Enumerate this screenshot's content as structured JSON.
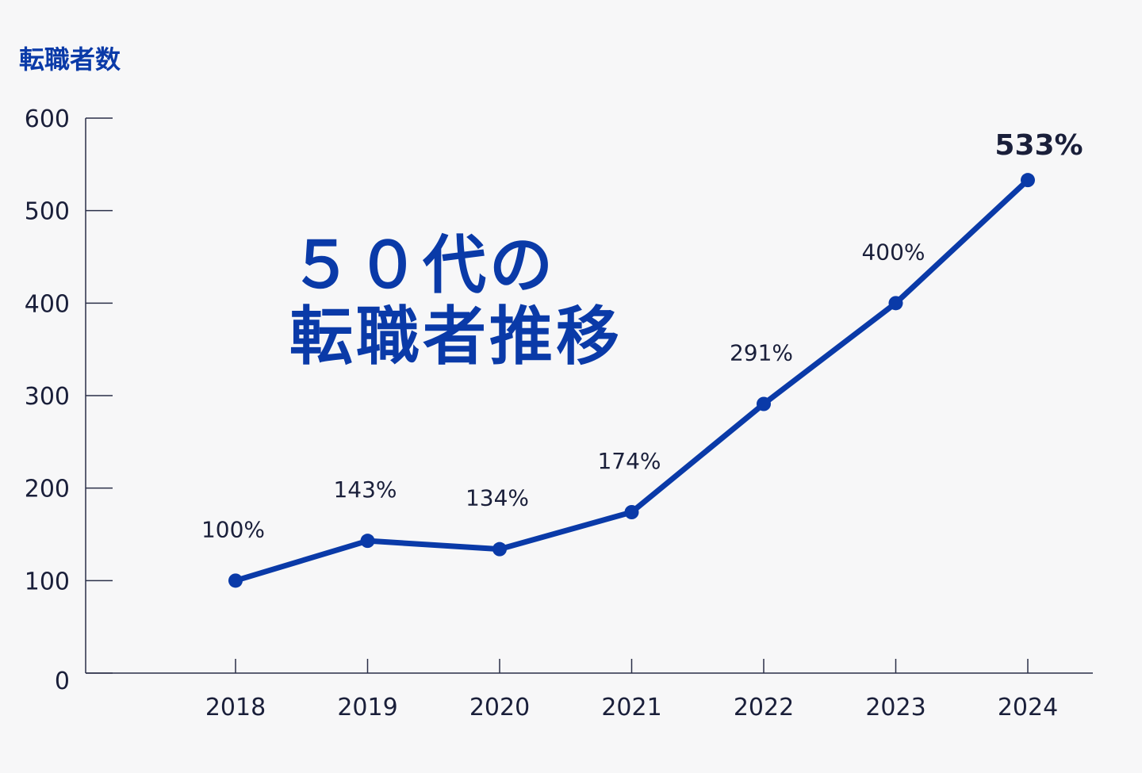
{
  "colors": {
    "background": "#f7f7f8",
    "accent": "#0a3aa8",
    "text_dark": "#1a1f3a",
    "axis": "#2a2f48"
  },
  "overlay_title": {
    "line1": "５０代の",
    "line2": "転職者推移"
  },
  "chart_data": {
    "type": "line",
    "title": "",
    "ylabel": "転職者数",
    "xlabel": "",
    "categories": [
      "2018",
      "2019",
      "2020",
      "2021",
      "2022",
      "2023",
      "2024"
    ],
    "values": [
      100,
      143,
      134,
      174,
      291,
      400,
      533
    ],
    "value_labels": [
      "100%",
      "143%",
      "134%",
      "174%",
      "291%",
      "400%",
      "533%"
    ],
    "ylim": [
      0,
      600
    ],
    "yticks": [
      "0",
      "100",
      "200",
      "300",
      "400",
      "500",
      "600"
    ],
    "grid": false,
    "legend": false,
    "markers": true
  }
}
